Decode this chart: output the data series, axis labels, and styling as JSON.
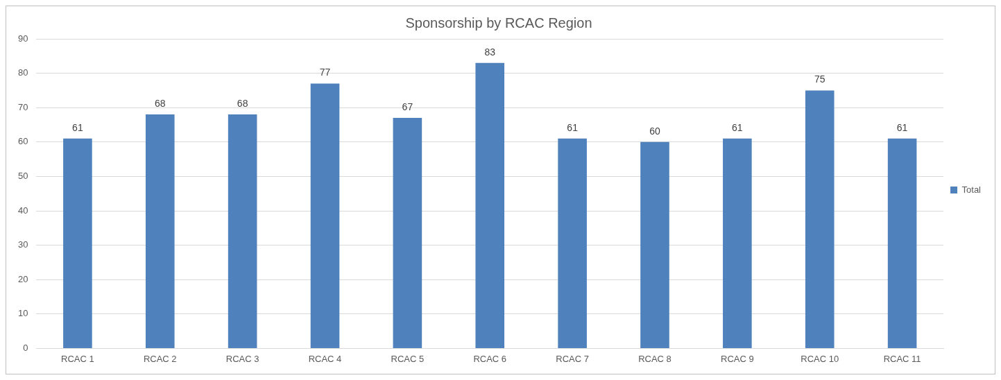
{
  "chart_data": {
    "type": "bar",
    "title": "Sponsorship by RCAC Region",
    "categories": [
      "RCAC 1",
      "RCAC 2",
      "RCAC 3",
      "RCAC 4",
      "RCAC 5",
      "RCAC 6",
      "RCAC 7",
      "RCAC 8",
      "RCAC 9",
      "RCAC 10",
      "RCAC 11"
    ],
    "series": [
      {
        "name": "Total",
        "color": "#4f81bd",
        "values": [
          61,
          68,
          68,
          77,
          67,
          83,
          61,
          60,
          61,
          75,
          61
        ]
      }
    ],
    "ylim": [
      0,
      90
    ],
    "yticks": [
      0,
      10,
      20,
      30,
      40,
      50,
      60,
      70,
      80,
      90
    ],
    "grid": "y",
    "legend": "right",
    "data_labels": true
  }
}
